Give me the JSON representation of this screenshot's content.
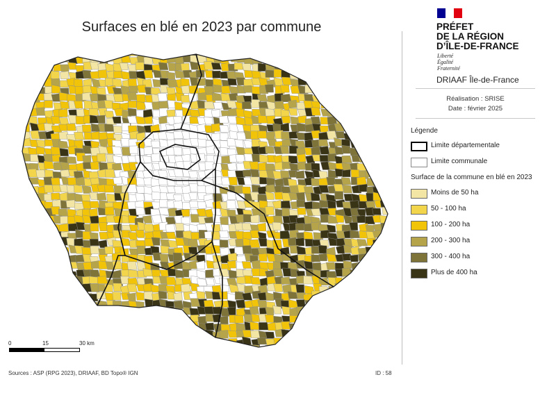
{
  "title": "Surfaces en blé en 2023 par commune",
  "header": {
    "prefet_lines": [
      "PRÉFET",
      "DE LA RÉGION",
      "D’ÎLE-DE-FRANCE"
    ],
    "devise": [
      "Liberté",
      "Égalité",
      "Fraternité"
    ],
    "organisme": "DRIAAF Île-de-France",
    "flag_colors": [
      "#000091",
      "#ffffff",
      "#e1000f"
    ]
  },
  "realisation": "Réalisation : SRISE",
  "date": "Date : février 2025",
  "legend": {
    "title": "Légende",
    "limite_departementale": "Limite départementale",
    "limite_communale": "Limite communale",
    "subtitle": "Surface de la commune en blé en 2023",
    "classes": [
      {
        "label": "Moins de 50 ha",
        "color": "#f3e6a4"
      },
      {
        "label": "50 - 100 ha",
        "color": "#f2d54a"
      },
      {
        "label": "100 - 200 ha",
        "color": "#f1c40a"
      },
      {
        "label": "200 - 300 ha",
        "color": "#b5a449"
      },
      {
        "label": "300 - 400 ha",
        "color": "#7e7338"
      },
      {
        "label": "Plus de 400 ha",
        "color": "#3a3416"
      }
    ]
  },
  "scale": {
    "labels": [
      "0",
      "15",
      "30 km"
    ]
  },
  "sources": "Sources : ASP (RPG 2023), DRIAAF, BD Topo® IGN",
  "id": "ID : 58"
}
